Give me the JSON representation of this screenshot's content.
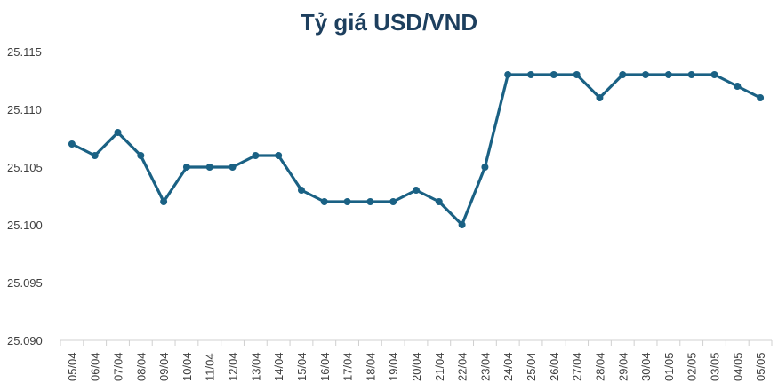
{
  "chart_data": {
    "type": "line",
    "title": "Tỷ giá USD/VND",
    "xlabel": "",
    "ylabel": "",
    "ylim": [
      25090,
      25115
    ],
    "y_ticks": [
      "25.090",
      "25.095",
      "25.100",
      "25.105",
      "25.110",
      "25.115"
    ],
    "grid": false,
    "legend": "none",
    "line_color": "#1a6184",
    "categories": [
      "05/04",
      "06/04",
      "07/04",
      "08/04",
      "09/04",
      "10/04",
      "11/04",
      "12/04",
      "13/04",
      "14/04",
      "15/04",
      "16/04",
      "17/04",
      "18/04",
      "19/04",
      "20/04",
      "21/04",
      "22/04",
      "23/04",
      "24/04",
      "25/04",
      "26/04",
      "27/04",
      "28/04",
      "29/04",
      "30/04",
      "01/05",
      "02/05",
      "03/05",
      "04/05",
      "05/05"
    ],
    "series": [
      {
        "values": [
          25107,
          25106,
          25108,
          25106,
          25102,
          25105,
          25105,
          25105,
          25106,
          25106,
          25103,
          25102,
          25102,
          25102,
          25102,
          25103,
          25102,
          25100,
          25105,
          25113,
          25113,
          25113,
          25113,
          25111,
          25113,
          25113,
          25113,
          25113,
          25113,
          25112,
          25111
        ]
      }
    ]
  }
}
